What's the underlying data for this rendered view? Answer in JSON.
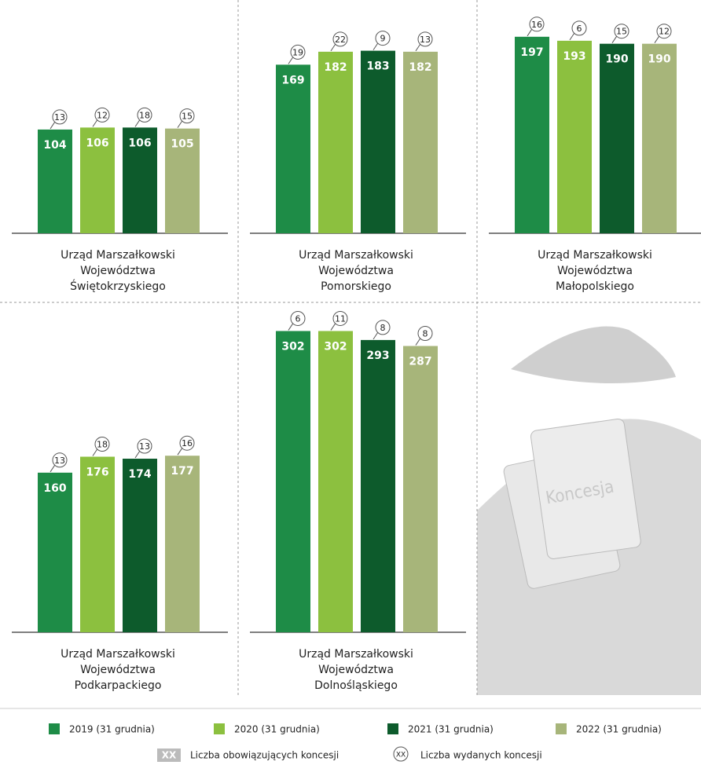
{
  "chart_data": [
    {
      "type": "bar",
      "title": [
        "Urząd Marszałkowski",
        "Województwa",
        "Świętokrzyskiego"
      ],
      "values": [
        104,
        106,
        106,
        105
      ],
      "issued": [
        13,
        12,
        18,
        15
      ]
    },
    {
      "type": "bar",
      "title": [
        "Urząd Marszałkowski",
        "Województwa",
        "Pomorskiego"
      ],
      "values": [
        169,
        182,
        183,
        182
      ],
      "issued": [
        19,
        22,
        9,
        13
      ]
    },
    {
      "type": "bar",
      "title": [
        "Urząd Marszałkowski",
        "Województwa",
        "Małopolskiego"
      ],
      "values": [
        197,
        193,
        190,
        190
      ],
      "issued": [
        16,
        6,
        15,
        12
      ]
    },
    {
      "type": "bar",
      "title": [
        "Urząd Marszałkowski",
        "Województwa",
        "Podkarpackiego"
      ],
      "values": [
        160,
        176,
        174,
        177
      ],
      "issued": [
        13,
        18,
        13,
        16
      ]
    },
    {
      "type": "bar",
      "title": [
        "Urząd Marszałkowski",
        "Województwa",
        "Dolnośląskiego"
      ],
      "values": [
        302,
        302,
        293,
        287
      ],
      "issued": [
        6,
        11,
        8,
        8
      ]
    }
  ],
  "series": [
    {
      "name": "2019 (31 grudnia)",
      "color": "#1e8c47"
    },
    {
      "name": "2020 (31 grudnia)",
      "color": "#8cc03f"
    },
    {
      "name": "2021 (31 grudnia)",
      "color": "#0d5b2c"
    },
    {
      "name": "2022 (31 grudnia)",
      "color": "#a7b57a"
    }
  ],
  "key": [
    {
      "symbol": "XX",
      "label": "Liczba obowiązujących koncesji"
    },
    {
      "symbol": "XX",
      "label": "Liczba wydanych koncesji"
    }
  ],
  "illustration_text": "Koncesja"
}
